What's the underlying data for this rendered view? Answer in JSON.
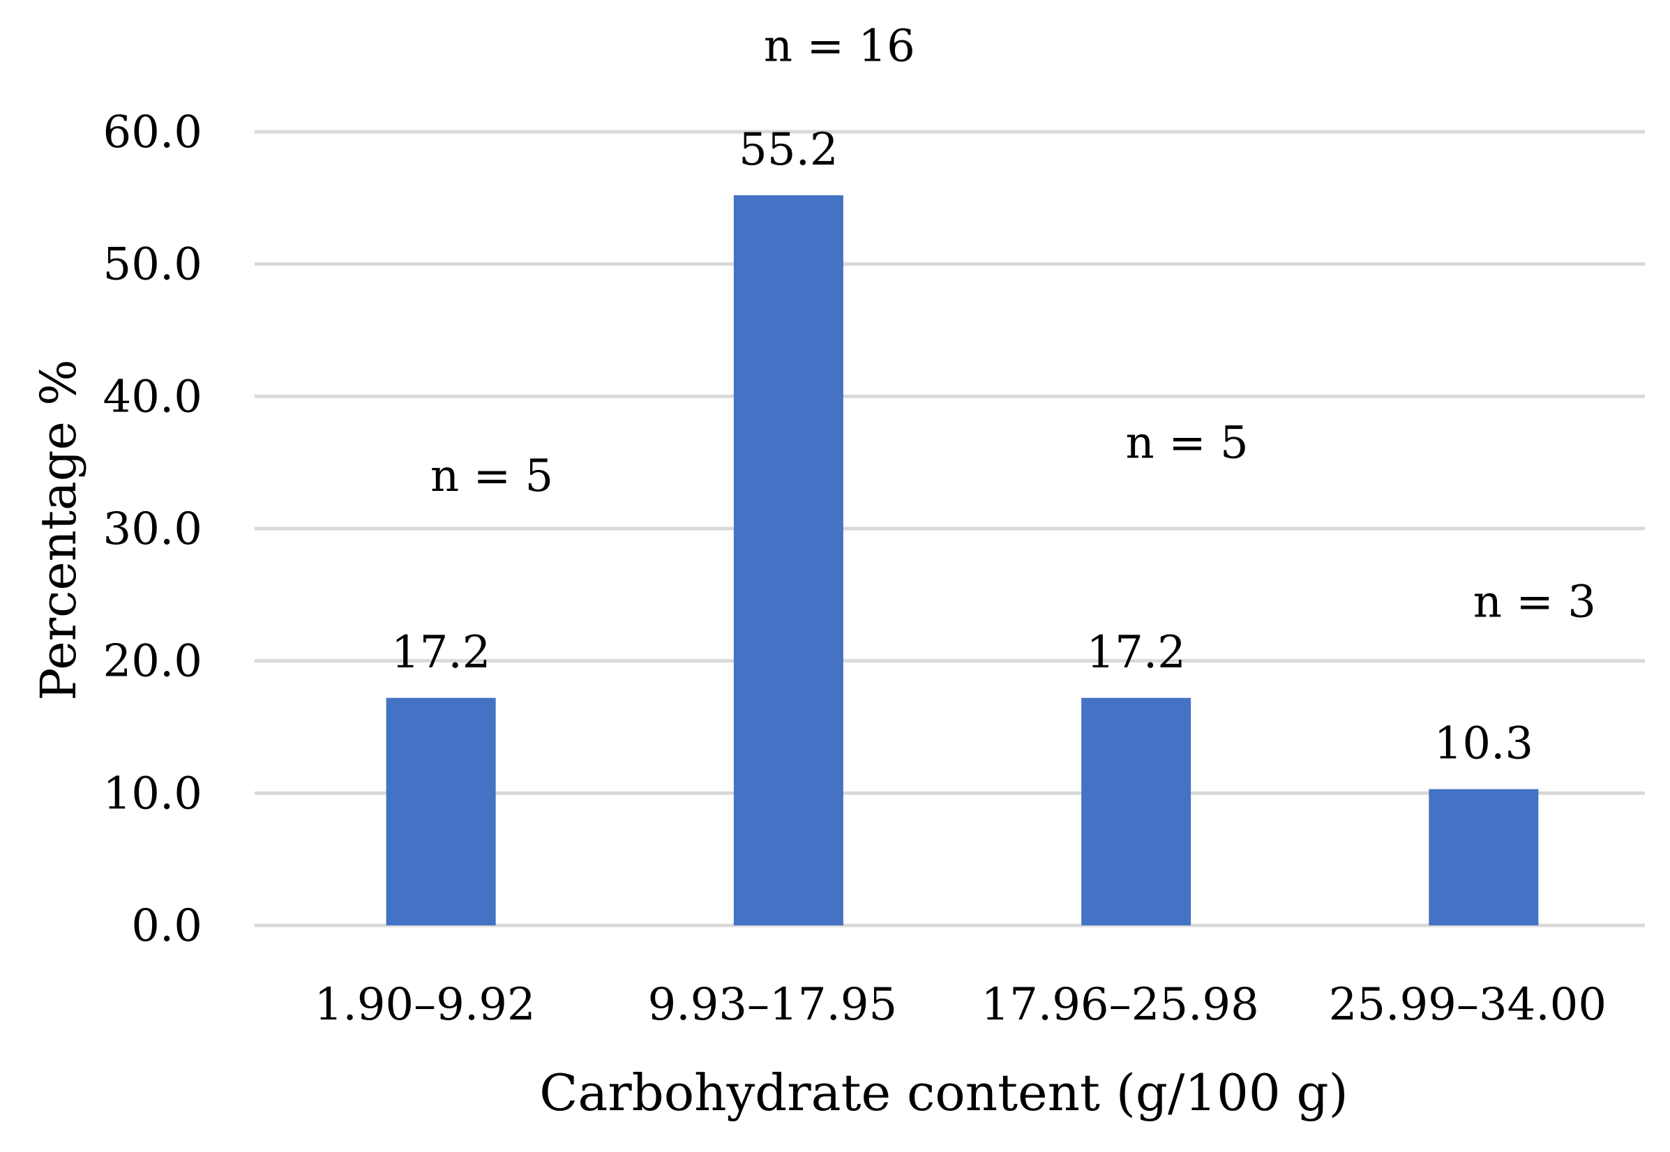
{
  "chart_data": {
    "type": "bar",
    "title": "",
    "xlabel": "Carbohydrate content (g/100 g)",
    "ylabel": "Percentage %",
    "categories": [
      "1.90–9.92",
      "9.93–17.95",
      "17.96–25.98",
      "25.99–34.00"
    ],
    "values": [
      17.2,
      55.2,
      17.2,
      10.3
    ],
    "value_labels": [
      "17.2",
      "55.2",
      "17.2",
      "10.3"
    ],
    "annotations": [
      "n = 5",
      "n = 16",
      "n = 5",
      "n = 3"
    ],
    "annotation_y": [
      34.0,
      66.5,
      36.5,
      24.5
    ],
    "ylim": [
      0,
      60
    ],
    "yticks": [
      0,
      10,
      20,
      30,
      40,
      50,
      60
    ],
    "ytick_labels": [
      "0.0",
      "10.0",
      "20.0",
      "30.0",
      "40.0",
      "50.0",
      "60.0"
    ],
    "grid": true,
    "legend": "none",
    "colors": {
      "bar": "#4472C4",
      "grid": "#D9D9D9",
      "text": "#000000"
    }
  }
}
